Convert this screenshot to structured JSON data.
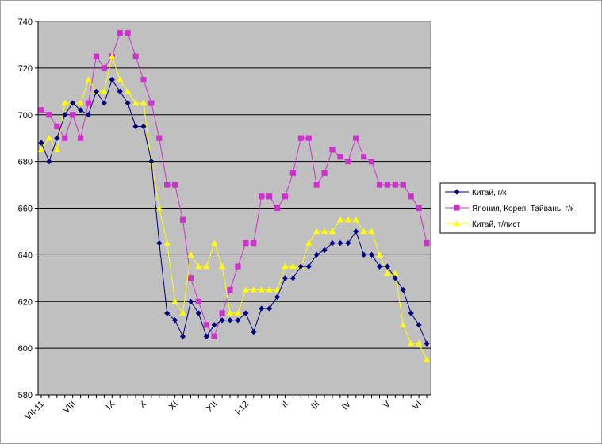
{
  "chart_data": {
    "type": "line",
    "y_range": [
      580,
      740
    ],
    "y_ticks": [
      580,
      600,
      620,
      640,
      660,
      680,
      700,
      720,
      740
    ],
    "grid": true,
    "legend_position": "right",
    "plot_background": "#c0c0c0",
    "month_labels": [
      {
        "text": "VII-11",
        "x": 0
      },
      {
        "text": "VIII",
        "x": 4
      },
      {
        "text": "IX",
        "x": 9
      },
      {
        "text": "X",
        "x": 13
      },
      {
        "text": "XI",
        "x": 17
      },
      {
        "text": "XII",
        "x": 22
      },
      {
        "text": "I-12",
        "x": 26
      },
      {
        "text": "II",
        "x": 31
      },
      {
        "text": "III",
        "x": 35
      },
      {
        "text": "IV",
        "x": 39
      },
      {
        "text": "V",
        "x": 44
      },
      {
        "text": "VI",
        "x": 48
      }
    ],
    "series": [
      {
        "name": "Китай, г/к",
        "color": "#000080",
        "marker": "diamond",
        "values": [
          688,
          680,
          690,
          700,
          705,
          702,
          700,
          710,
          705,
          715,
          710,
          705,
          695,
          695,
          680,
          645,
          615,
          612,
          605,
          620,
          615,
          605,
          610,
          612,
          612,
          612,
          615,
          607,
          617,
          617,
          622,
          630,
          630,
          635,
          635,
          640,
          642,
          645,
          645,
          645,
          650,
          640,
          640,
          635,
          635,
          630,
          625,
          615,
          610,
          602
        ]
      },
      {
        "name": "Япония, Корея, Тайвань, г/к",
        "color": "#cc33cc",
        "marker": "square",
        "values": [
          702,
          700,
          695,
          690,
          700,
          690,
          705,
          725,
          720,
          725,
          735,
          735,
          725,
          715,
          705,
          690,
          670,
          670,
          655,
          630,
          620,
          610,
          605,
          615,
          625,
          635,
          645,
          645,
          665,
          665,
          660,
          665,
          675,
          690,
          690,
          670,
          675,
          685,
          682,
          680,
          690,
          682,
          680,
          670,
          670,
          670,
          670,
          665,
          660,
          645
        ]
      },
      {
        "name": "Китай, т/лист",
        "color": "#ffff00",
        "marker": "triangle",
        "values": [
          685,
          690,
          685,
          705,
          705,
          705,
          715,
          710,
          710,
          725,
          715,
          710,
          705,
          705,
          680,
          660,
          645,
          620,
          615,
          640,
          635,
          635,
          645,
          635,
          615,
          615,
          625,
          625,
          625,
          625,
          625,
          635,
          635,
          635,
          645,
          650,
          650,
          650,
          655,
          655,
          655,
          650,
          650,
          640,
          632,
          632,
          610,
          602,
          602,
          595
        ]
      }
    ]
  }
}
